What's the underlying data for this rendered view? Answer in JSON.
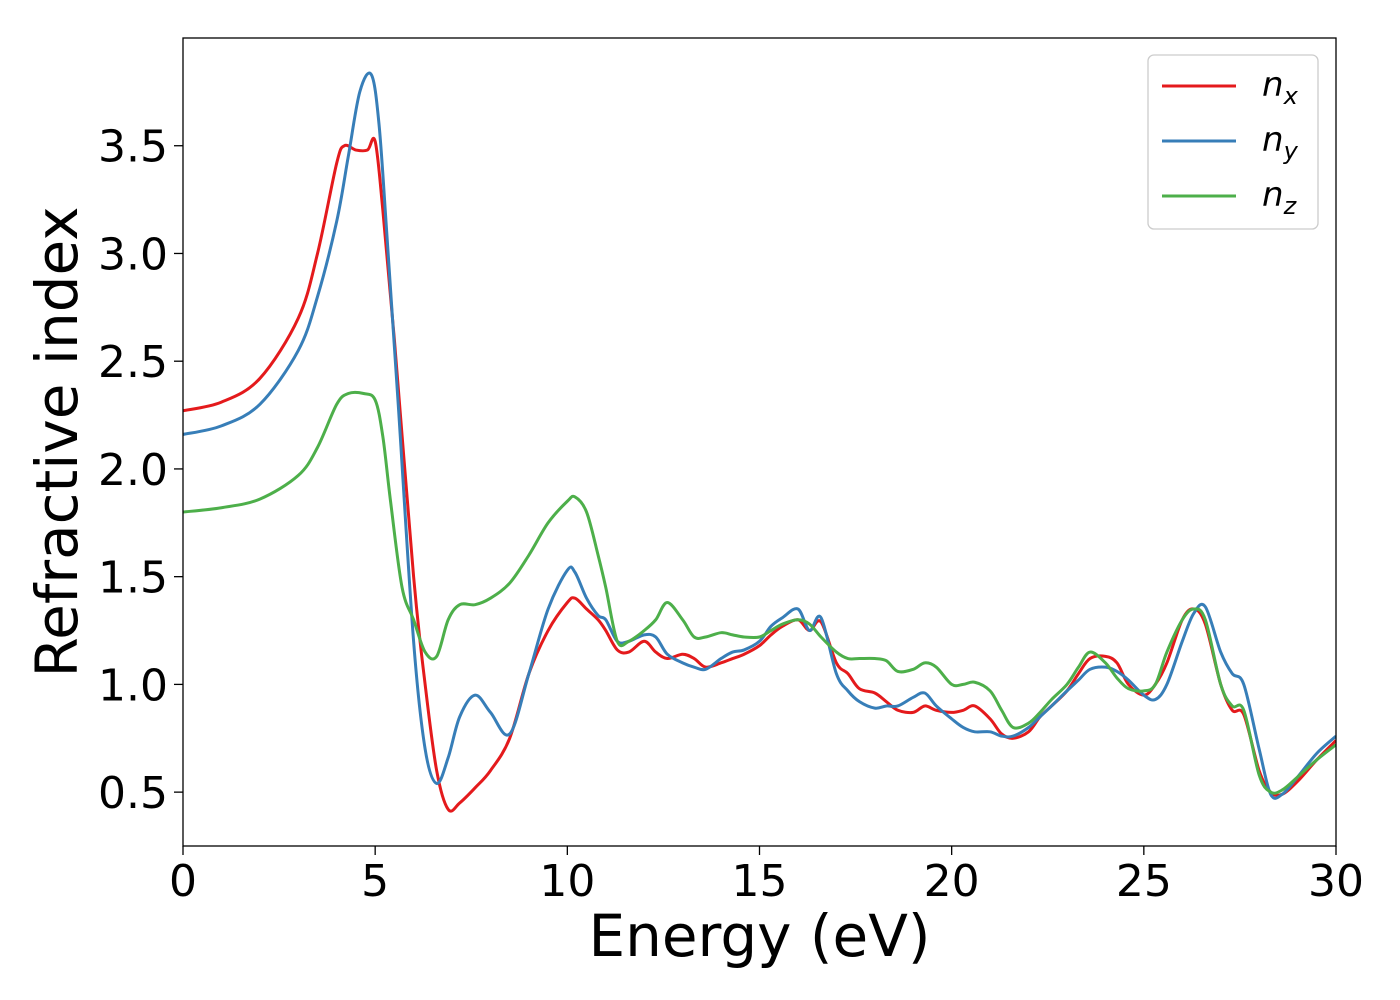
{
  "chart_data": {
    "type": "line",
    "xlabel": "Energy (eV)",
    "ylabel": "Refractive index",
    "xlim": [
      0,
      30
    ],
    "ylim": [
      0.25,
      4.0
    ],
    "xticks": [
      0,
      5,
      10,
      15,
      20,
      25,
      30
    ],
    "xtick_labels": [
      "0",
      "5",
      "10",
      "15",
      "20",
      "25",
      "30"
    ],
    "yticks": [
      0.5,
      1.0,
      1.5,
      2.0,
      2.5,
      3.0,
      3.5
    ],
    "ytick_labels": [
      "0.5",
      "1.0",
      "1.5",
      "2.0",
      "2.5",
      "3.0",
      "3.5"
    ],
    "grid": false,
    "legend_position": "top-right",
    "series": [
      {
        "name": "n",
        "subscript": "x",
        "color": "#e41a1c",
        "x": [
          0,
          1,
          2,
          3,
          3.5,
          4,
          4.2,
          4.5,
          4.8,
          5.0,
          5.2,
          5.5,
          6.0,
          6.3,
          6.6,
          6.9,
          7.2,
          7.6,
          8.0,
          8.5,
          9.0,
          9.5,
          10.0,
          10.2,
          10.5,
          10.8,
          11.0,
          11.3,
          11.6,
          12.0,
          12.3,
          12.6,
          13.0,
          13.3,
          13.6,
          14.0,
          14.3,
          14.6,
          15.0,
          15.3,
          15.6,
          16.0,
          16.3,
          16.6,
          17.0,
          17.3,
          17.6,
          18.0,
          18.3,
          18.6,
          19.0,
          19.3,
          19.6,
          20.0,
          20.3,
          20.6,
          21.0,
          21.3,
          21.6,
          22.0,
          22.3,
          22.6,
          23.0,
          23.3,
          23.6,
          24.0,
          24.3,
          24.6,
          25.0,
          25.3,
          25.6,
          26.0,
          26.3,
          26.6,
          27.0,
          27.3,
          27.6,
          28.0,
          28.3,
          28.6,
          29.0,
          29.5,
          30.0
        ],
        "y": [
          2.27,
          2.31,
          2.42,
          2.7,
          3.0,
          3.42,
          3.5,
          3.48,
          3.48,
          3.52,
          3.2,
          2.6,
          1.5,
          1.0,
          0.6,
          0.42,
          0.45,
          0.52,
          0.6,
          0.75,
          1.05,
          1.25,
          1.38,
          1.4,
          1.35,
          1.3,
          1.25,
          1.16,
          1.15,
          1.2,
          1.15,
          1.12,
          1.14,
          1.12,
          1.08,
          1.1,
          1.12,
          1.14,
          1.18,
          1.23,
          1.27,
          1.3,
          1.25,
          1.29,
          1.1,
          1.05,
          0.98,
          0.96,
          0.92,
          0.88,
          0.87,
          0.9,
          0.88,
          0.87,
          0.88,
          0.9,
          0.84,
          0.77,
          0.75,
          0.78,
          0.85,
          0.9,
          0.97,
          1.05,
          1.12,
          1.13,
          1.1,
          1.0,
          0.95,
          1.0,
          1.1,
          1.3,
          1.35,
          1.28,
          1.0,
          0.88,
          0.86,
          0.6,
          0.5,
          0.49,
          0.55,
          0.65,
          0.74
        ]
      },
      {
        "name": "n",
        "subscript": "y",
        "color": "#377eb8",
        "x": [
          0,
          1,
          2,
          3,
          3.5,
          4,
          4.3,
          4.6,
          4.9,
          5.1,
          5.3,
          5.6,
          6.0,
          6.3,
          6.6,
          6.9,
          7.2,
          7.6,
          8.0,
          8.5,
          9.0,
          9.5,
          10.0,
          10.2,
          10.5,
          10.8,
          11.0,
          11.3,
          11.6,
          12.0,
          12.3,
          12.6,
          13.0,
          13.3,
          13.6,
          14.0,
          14.3,
          14.6,
          15.0,
          15.3,
          15.6,
          16.0,
          16.3,
          16.6,
          17.0,
          17.3,
          17.6,
          18.0,
          18.3,
          18.6,
          19.0,
          19.3,
          19.6,
          20.0,
          20.3,
          20.6,
          21.0,
          21.3,
          21.6,
          22.0,
          22.3,
          22.6,
          23.0,
          23.3,
          23.6,
          24.0,
          24.3,
          24.6,
          25.0,
          25.3,
          25.6,
          26.0,
          26.3,
          26.6,
          27.0,
          27.3,
          27.6,
          28.0,
          28.3,
          28.6,
          29.0,
          29.5,
          30.0
        ],
        "y": [
          2.16,
          2.2,
          2.3,
          2.55,
          2.8,
          3.15,
          3.45,
          3.75,
          3.83,
          3.6,
          3.1,
          2.3,
          1.2,
          0.7,
          0.54,
          0.66,
          0.85,
          0.95,
          0.87,
          0.77,
          1.05,
          1.35,
          1.53,
          1.52,
          1.4,
          1.32,
          1.3,
          1.2,
          1.2,
          1.23,
          1.22,
          1.14,
          1.1,
          1.08,
          1.07,
          1.12,
          1.15,
          1.16,
          1.2,
          1.27,
          1.31,
          1.35,
          1.25,
          1.31,
          1.05,
          0.97,
          0.92,
          0.89,
          0.9,
          0.9,
          0.94,
          0.96,
          0.9,
          0.84,
          0.8,
          0.78,
          0.78,
          0.76,
          0.76,
          0.8,
          0.85,
          0.9,
          0.97,
          1.02,
          1.07,
          1.08,
          1.06,
          1.02,
          0.95,
          0.93,
          1.0,
          1.2,
          1.33,
          1.36,
          1.15,
          1.05,
          1.0,
          0.7,
          0.49,
          0.49,
          0.57,
          0.68,
          0.76
        ]
      },
      {
        "name": "n",
        "subscript": "z",
        "color": "#4daf4a",
        "x": [
          0,
          1,
          2,
          3,
          3.5,
          4,
          4.3,
          4.7,
          5.0,
          5.2,
          5.4,
          5.7,
          6.0,
          6.3,
          6.6,
          6.9,
          7.2,
          7.6,
          8.0,
          8.5,
          9.0,
          9.5,
          10.0,
          10.2,
          10.5,
          10.8,
          11.0,
          11.3,
          11.6,
          12.0,
          12.3,
          12.6,
          13.0,
          13.3,
          13.6,
          14.0,
          14.3,
          14.6,
          15.0,
          15.3,
          15.6,
          16.0,
          16.3,
          16.6,
          17.0,
          17.3,
          17.6,
          18.0,
          18.3,
          18.6,
          19.0,
          19.3,
          19.6,
          20.0,
          20.3,
          20.6,
          21.0,
          21.3,
          21.6,
          22.0,
          22.3,
          22.6,
          23.0,
          23.3,
          23.6,
          24.0,
          24.3,
          24.6,
          25.0,
          25.3,
          25.6,
          26.0,
          26.3,
          26.6,
          27.0,
          27.3,
          27.6,
          28.0,
          28.3,
          28.6,
          29.0,
          29.5,
          30.0
        ],
        "y": [
          1.8,
          1.82,
          1.86,
          1.97,
          2.1,
          2.3,
          2.35,
          2.35,
          2.32,
          2.15,
          1.85,
          1.45,
          1.3,
          1.15,
          1.13,
          1.3,
          1.37,
          1.37,
          1.4,
          1.47,
          1.6,
          1.75,
          1.85,
          1.87,
          1.8,
          1.6,
          1.45,
          1.2,
          1.2,
          1.25,
          1.3,
          1.38,
          1.3,
          1.22,
          1.22,
          1.24,
          1.23,
          1.22,
          1.22,
          1.25,
          1.28,
          1.3,
          1.28,
          1.22,
          1.15,
          1.12,
          1.12,
          1.12,
          1.11,
          1.06,
          1.07,
          1.1,
          1.08,
          1.0,
          1.0,
          1.01,
          0.97,
          0.88,
          0.8,
          0.82,
          0.87,
          0.93,
          1.0,
          1.08,
          1.15,
          1.1,
          1.03,
          0.98,
          0.97,
          1.0,
          1.15,
          1.3,
          1.35,
          1.3,
          1.0,
          0.9,
          0.88,
          0.58,
          0.5,
          0.51,
          0.57,
          0.65,
          0.72
        ]
      }
    ]
  }
}
